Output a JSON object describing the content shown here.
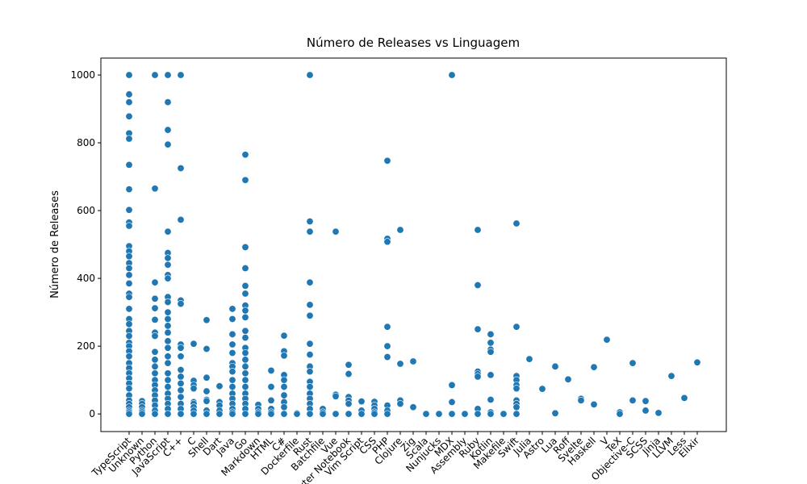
{
  "chart_data": {
    "type": "scatter",
    "title": "Número de Releases vs Linguagem",
    "y_label": "Número de Releases",
    "color": "#1f77b4",
    "categories": [
      "TypeScript",
      "Unknown",
      "Python",
      "JavaScript",
      "C++",
      "C",
      "Shell",
      "Dart",
      "Java",
      "Go",
      "Markdown",
      "HTML",
      "C#",
      "Dockerfile",
      "Rust",
      "Batchfile",
      "Vue",
      "Jupyter Notebook",
      "Vim Script",
      "CSS",
      "PHP",
      "Clojure",
      "Zig",
      "Scala",
      "Nunjucks",
      "MDX",
      "Assembly",
      "Ruby",
      "Kotlin",
      "Makefile",
      "Swift",
      "Julia",
      "Astro",
      "Lua",
      "Roff",
      "Svelte",
      "Haskell",
      "V",
      "TeX",
      "Objective-C",
      "SCSS",
      "Jinja",
      "LLVM",
      "Less",
      "Elixir"
    ],
    "values": [
      [
        1000,
        943,
        920,
        878,
        828,
        812,
        735,
        663,
        602,
        565,
        555,
        495,
        480,
        465,
        445,
        430,
        410,
        385,
        355,
        345,
        310,
        280,
        265,
        245,
        230,
        210,
        200,
        185,
        170,
        150,
        135,
        120,
        105,
        90,
        75,
        55,
        40,
        30,
        20,
        10,
        5,
        0
      ],
      [
        38,
        30,
        20,
        10,
        5,
        0
      ],
      [
        1000,
        665,
        388,
        340,
        312,
        278,
        240,
        230,
        183,
        160,
        140,
        120,
        100,
        85,
        70,
        55,
        40,
        25,
        10,
        0
      ],
      [
        1000,
        920,
        838,
        795,
        538,
        475,
        460,
        440,
        410,
        400,
        345,
        330,
        300,
        280,
        260,
        240,
        215,
        195,
        170,
        150,
        120,
        100,
        80,
        60,
        45,
        30,
        15,
        0
      ],
      [
        1000,
        725,
        573,
        335,
        325,
        205,
        195,
        170,
        130,
        110,
        90,
        70,
        50,
        30,
        15,
        0
      ],
      [
        207,
        98,
        85,
        75,
        35,
        30,
        20,
        10,
        0
      ],
      [
        277,
        192,
        107,
        67,
        42,
        38,
        10,
        0
      ],
      [
        82,
        35,
        25,
        10,
        0
      ],
      [
        310,
        280,
        235,
        205,
        180,
        150,
        140,
        125,
        100,
        80,
        60,
        45,
        30,
        15,
        5,
        0
      ],
      [
        765,
        690,
        492,
        430,
        378,
        355,
        320,
        305,
        285,
        245,
        225,
        195,
        180,
        160,
        140,
        120,
        100,
        80,
        60,
        45,
        30,
        15,
        0
      ],
      [
        27,
        15,
        5,
        0
      ],
      [
        128,
        80,
        40,
        15,
        5,
        0
      ],
      [
        231,
        185,
        172,
        115,
        100,
        80,
        55,
        35,
        20,
        0
      ],
      [
        2,
        0
      ],
      [
        1000,
        568,
        538,
        388,
        322,
        290,
        207,
        175,
        140,
        125,
        95,
        80,
        60,
        45,
        30,
        15,
        0
      ],
      [
        15,
        5,
        0
      ],
      [
        538,
        57,
        52,
        0
      ],
      [
        145,
        118,
        50,
        40,
        30,
        0
      ],
      [
        37,
        10,
        0
      ],
      [
        36,
        25,
        15,
        5,
        0
      ],
      [
        747,
        517,
        508,
        257,
        200,
        168,
        25,
        10,
        0
      ],
      [
        543,
        148,
        40,
        30
      ],
      [
        155,
        20
      ],
      [
        0
      ],
      [
        0
      ],
      [
        1000,
        85,
        35,
        0
      ],
      [
        0
      ],
      [
        543,
        380,
        250,
        125,
        118,
        110,
        15,
        0
      ],
      [
        235,
        210,
        190,
        183,
        115,
        42,
        5,
        0
      ],
      [
        0
      ],
      [
        562,
        257,
        112,
        100,
        85,
        75,
        40,
        30,
        20,
        0
      ],
      [
        162
      ],
      [
        74
      ],
      [
        140,
        2
      ],
      [
        102
      ],
      [
        45,
        40
      ],
      [
        138,
        28
      ],
      [
        219
      ],
      [
        5,
        0
      ],
      [
        150,
        40
      ],
      [
        38,
        10
      ],
      [
        3
      ],
      [
        112
      ],
      [
        47
      ],
      [
        152
      ]
    ],
    "ylim": [
      -52,
      1050
    ],
    "yticks": [
      0,
      200,
      400,
      600,
      800,
      1000
    ]
  }
}
